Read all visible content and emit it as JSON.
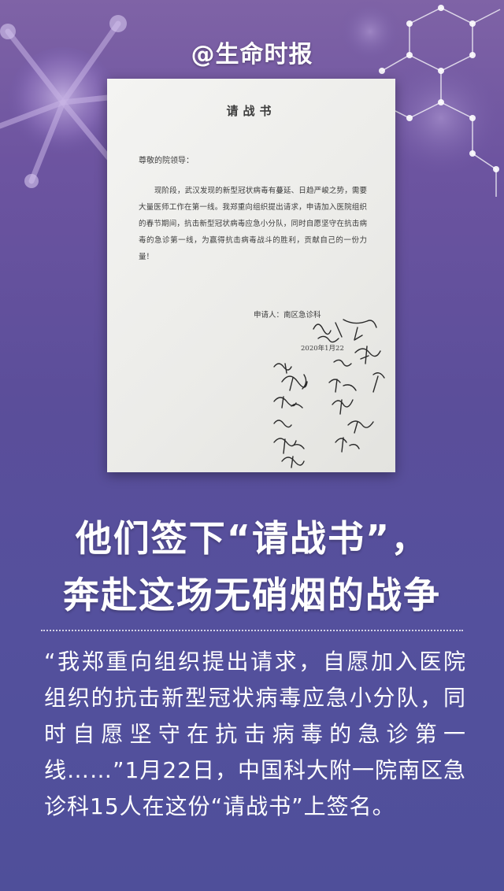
{
  "watermark": "@生命时报",
  "letter": {
    "title": "请战书",
    "salutation": "尊敬的院领导：",
    "body": "现阶段，武汉发现的新型冠状病毒有蔓延、日趋严峻之势，需要大量医师工作在第一线。我郑重向组织提出请求，申请加入医院组织的春节期间，抗击新型冠状病毒应急小分队，同时自愿坚守在抗击病毒的急诊第一线，为赢得抗击病毒战斗的胜利，贡献自己的一份力量！",
    "applicant": "申请人：南区急诊科",
    "date": "2020年1月22"
  },
  "headline": {
    "line1": "他们签下“请战书”，",
    "line2": "奔赴这场无硝烟的战争"
  },
  "caption": "“我郑重向组织提出请求，自愿加入医院组织的抗击新型冠状病毒应急小分队，同时自愿坚守在抗击病毒的急诊第一线……”1月22日，中国科大附一院南区急诊科15人在这份“请战书”上签名。",
  "colors": {
    "background_top": "#7f63a6",
    "background_bottom": "#4f4f9a",
    "text": "#ffffff",
    "paper": "#f0f0ee"
  }
}
